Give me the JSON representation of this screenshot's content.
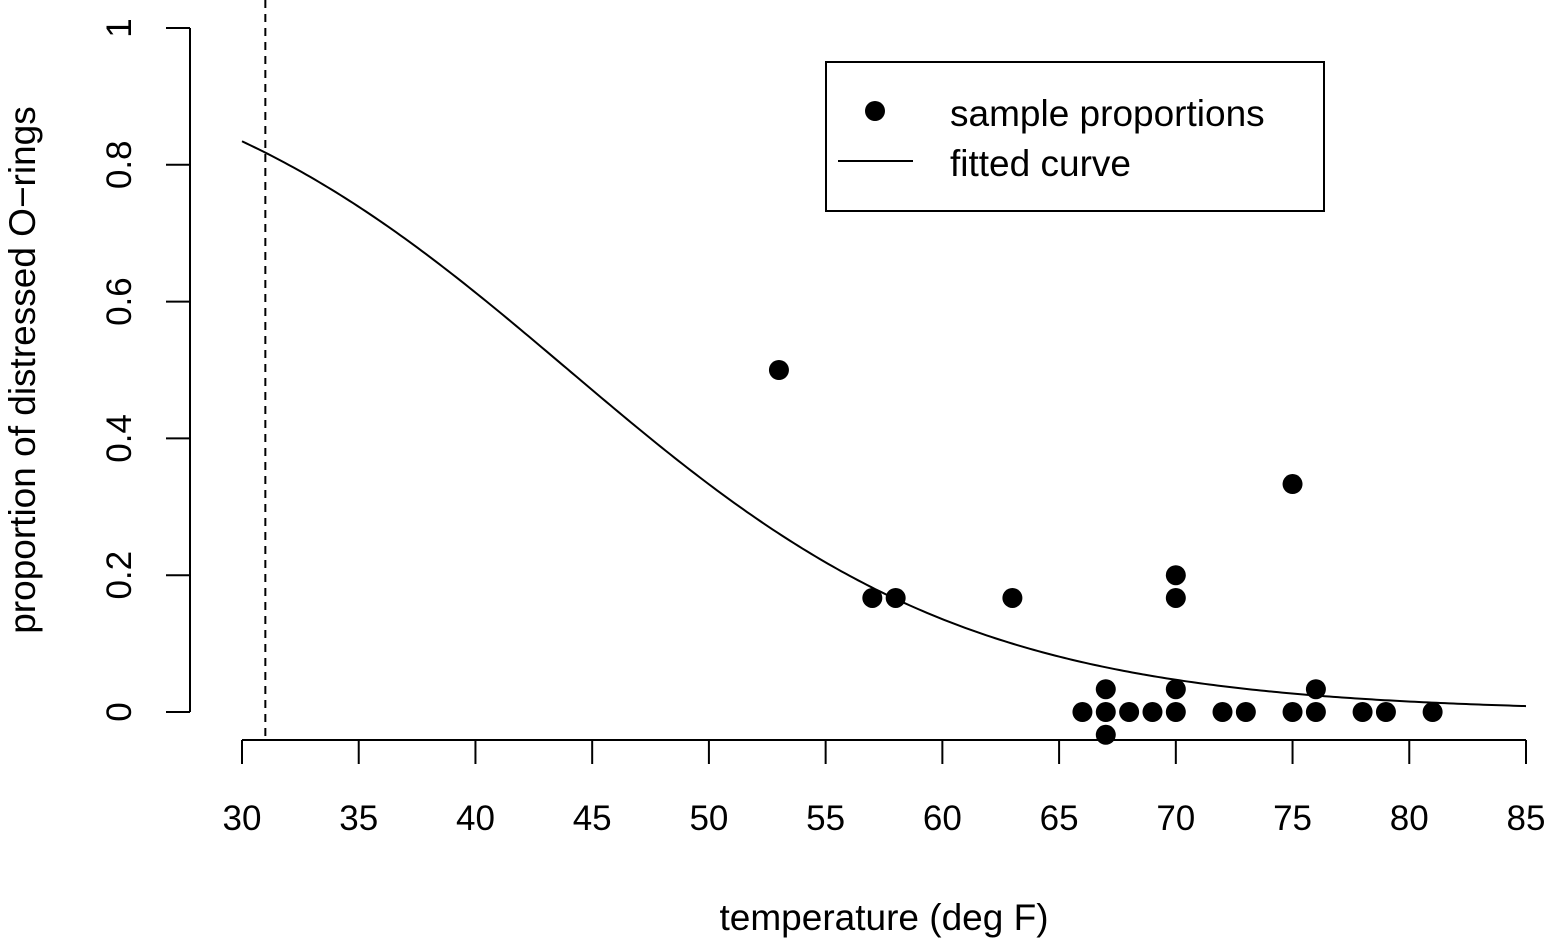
{
  "chart_data": {
    "type": "scatter",
    "xlabel": "temperature (deg F)",
    "ylabel": "proportion of distressed O−rings",
    "xlim": [
      30,
      85
    ],
    "ylim": [
      0,
      1
    ],
    "x_ticks": [
      30,
      35,
      40,
      45,
      50,
      55,
      60,
      65,
      70,
      75,
      80,
      85
    ],
    "x_tick_labels": [
      "30",
      "35",
      "40",
      "45",
      "50",
      "55",
      "60",
      "65",
      "70",
      "75",
      "80",
      "85"
    ],
    "y_ticks": [
      0,
      0.2,
      0.4,
      0.6,
      0.8,
      1
    ],
    "y_tick_labels": [
      "0",
      "0.2",
      "0.4",
      "0.6",
      "0.8",
      "1"
    ],
    "grid": false,
    "legend": {
      "position": "top-right",
      "entries": [
        {
          "label": "sample proportions",
          "symbol": "point"
        },
        {
          "label": "fitted curve",
          "symbol": "line"
        }
      ]
    },
    "reference_line": {
      "orientation": "vertical",
      "x": 31,
      "style": "dashed"
    },
    "series": [
      {
        "name": "sample proportions",
        "kind": "points",
        "points": [
          {
            "x": 53,
            "y": 0.5
          },
          {
            "x": 57,
            "y": 0.1667
          },
          {
            "x": 58,
            "y": 0.1667
          },
          {
            "x": 63,
            "y": 0.1667
          },
          {
            "x": 66,
            "y": 0
          },
          {
            "x": 67,
            "y": 0.0333
          },
          {
            "x": 67,
            "y": 0
          },
          {
            "x": 67,
            "y": -0.0333
          },
          {
            "x": 68,
            "y": 0
          },
          {
            "x": 69,
            "y": 0
          },
          {
            "x": 70,
            "y": 0.2
          },
          {
            "x": 70,
            "y": 0.1667
          },
          {
            "x": 70,
            "y": 0.0333
          },
          {
            "x": 70,
            "y": 0
          },
          {
            "x": 72,
            "y": 0
          },
          {
            "x": 73,
            "y": 0
          },
          {
            "x": 75,
            "y": 0.3333
          },
          {
            "x": 75,
            "y": 0
          },
          {
            "x": 76,
            "y": 0.0333
          },
          {
            "x": 76,
            "y": 0
          },
          {
            "x": 78,
            "y": 0
          },
          {
            "x": 79,
            "y": 0
          },
          {
            "x": 81,
            "y": 0
          }
        ]
      },
      {
        "name": "fitted curve",
        "kind": "curve",
        "model": "logistic",
        "intercept": 5.085,
        "slope": -0.1156,
        "x_range": [
          30,
          85
        ]
      }
    ]
  }
}
